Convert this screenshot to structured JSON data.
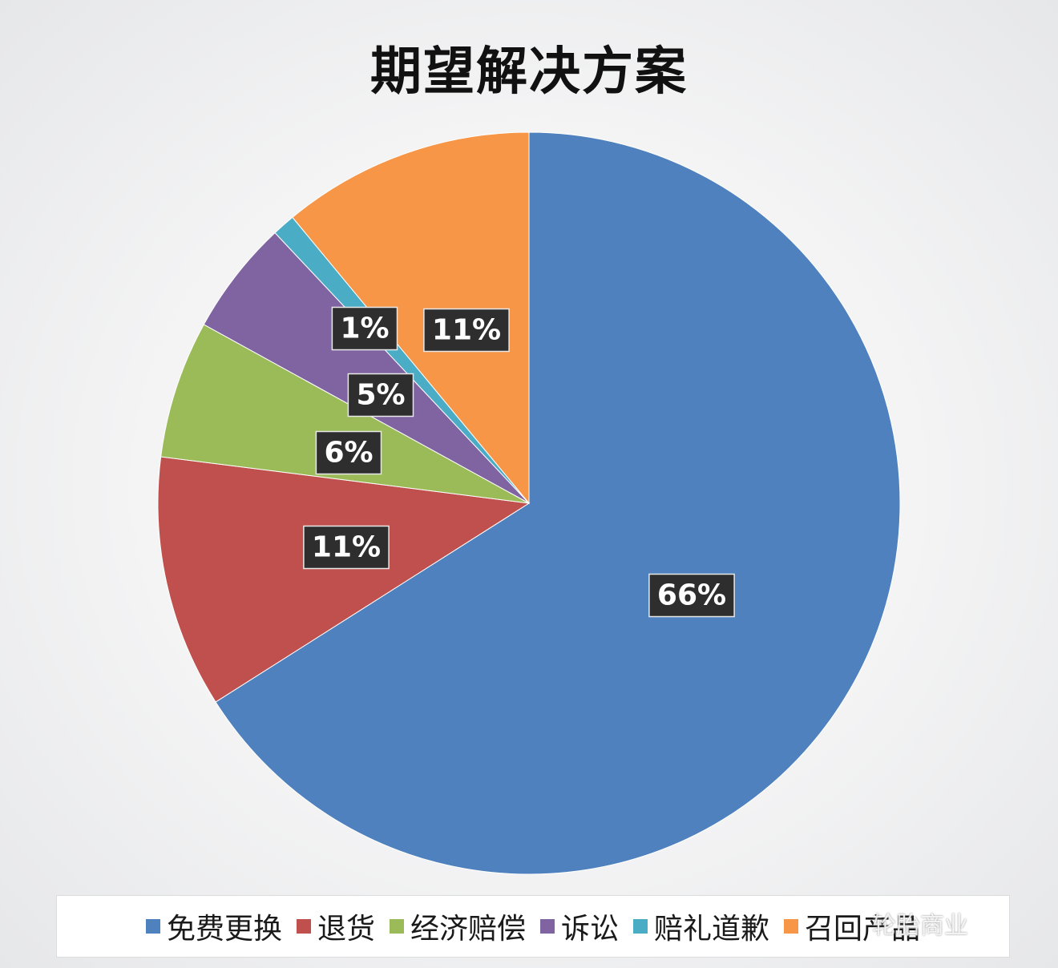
{
  "chart_data": {
    "type": "pie",
    "title": "期望解决方案",
    "start_angle_deg": 0,
    "direction": "clockwise",
    "slices": [
      {
        "label": "免费更换",
        "value": 66,
        "data_label": "66%",
        "color": "#4e81bd"
      },
      {
        "label": "退货",
        "value": 11,
        "data_label": "11%",
        "color": "#c0504d"
      },
      {
        "label": "经济赔偿",
        "value": 6,
        "data_label": "6%",
        "color": "#9bbb59"
      },
      {
        "label": "诉讼",
        "value": 5,
        "data_label": "5%",
        "color": "#8064a2"
      },
      {
        "label": "赔礼道歉",
        "value": 1,
        "data_label": "1%",
        "color": "#4bacc6"
      },
      {
        "label": "召回产品",
        "value": 11,
        "data_label": "11%",
        "color": "#f79646"
      }
    ],
    "legend_position": "bottom"
  },
  "watermark": "轮胎商业"
}
